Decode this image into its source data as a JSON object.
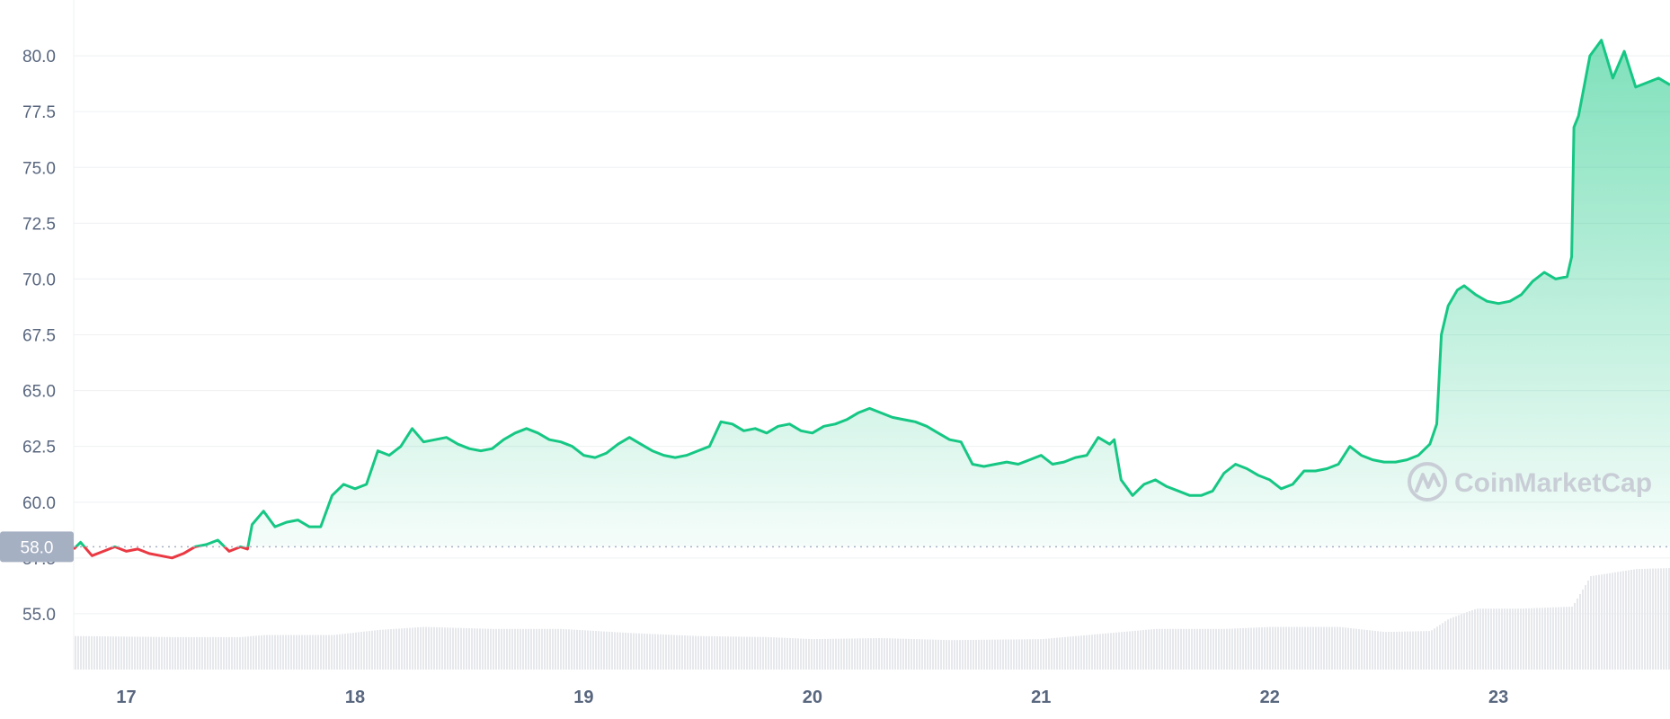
{
  "chart_data": {
    "type": "area",
    "title": "",
    "xlabel": "",
    "ylabel": "",
    "ylim": [
      52.5,
      82.5
    ],
    "y_ticks": [
      "55.0",
      "57.5",
      "60.0",
      "62.5",
      "65.0",
      "67.5",
      "70.0",
      "72.5",
      "75.0",
      "77.5",
      "80.0"
    ],
    "x_range": [
      16.77,
      23.75
    ],
    "x_ticks": [
      {
        "x": 17,
        "label": "17"
      },
      {
        "x": 18,
        "label": "18"
      },
      {
        "x": 19,
        "label": "19"
      },
      {
        "x": 20,
        "label": "20"
      },
      {
        "x": 21,
        "label": "21"
      },
      {
        "x": 22,
        "label": "22"
      },
      {
        "x": 23,
        "label": "23"
      }
    ],
    "reference_line": {
      "value": 58.0,
      "label": "58.0"
    },
    "colors": {
      "up": "#16c784",
      "down": "#ea3943",
      "volume": "#e6e8ec",
      "reference": "#a6b0c3"
    },
    "series": [
      {
        "values": [
          [
            16.77,
            57.9
          ],
          [
            16.8,
            58.2
          ],
          [
            16.85,
            57.6
          ],
          [
            16.9,
            57.8
          ],
          [
            16.95,
            58.0
          ],
          [
            17.0,
            57.8
          ],
          [
            17.05,
            57.9
          ],
          [
            17.1,
            57.7
          ],
          [
            17.15,
            57.6
          ],
          [
            17.2,
            57.5
          ],
          [
            17.25,
            57.7
          ],
          [
            17.3,
            58.0
          ],
          [
            17.35,
            58.1
          ],
          [
            17.4,
            58.3
          ],
          [
            17.45,
            57.8
          ],
          [
            17.5,
            58.0
          ],
          [
            17.53,
            57.9
          ],
          [
            17.55,
            59.0
          ],
          [
            17.6,
            59.6
          ],
          [
            17.65,
            58.9
          ],
          [
            17.7,
            59.1
          ],
          [
            17.75,
            59.2
          ],
          [
            17.8,
            58.9
          ],
          [
            17.85,
            58.9
          ],
          [
            17.9,
            60.3
          ],
          [
            17.95,
            60.8
          ],
          [
            18.0,
            60.6
          ],
          [
            18.05,
            60.8
          ],
          [
            18.1,
            62.3
          ],
          [
            18.15,
            62.1
          ],
          [
            18.2,
            62.5
          ],
          [
            18.25,
            63.3
          ],
          [
            18.3,
            62.7
          ],
          [
            18.35,
            62.8
          ],
          [
            18.4,
            62.9
          ],
          [
            18.45,
            62.6
          ],
          [
            18.5,
            62.4
          ],
          [
            18.55,
            62.3
          ],
          [
            18.6,
            62.4
          ],
          [
            18.65,
            62.8
          ],
          [
            18.7,
            63.1
          ],
          [
            18.75,
            63.3
          ],
          [
            18.8,
            63.1
          ],
          [
            18.85,
            62.8
          ],
          [
            18.9,
            62.7
          ],
          [
            18.95,
            62.5
          ],
          [
            19.0,
            62.1
          ],
          [
            19.05,
            62.0
          ],
          [
            19.1,
            62.2
          ],
          [
            19.15,
            62.6
          ],
          [
            19.2,
            62.9
          ],
          [
            19.25,
            62.6
          ],
          [
            19.3,
            62.3
          ],
          [
            19.35,
            62.1
          ],
          [
            19.4,
            62.0
          ],
          [
            19.45,
            62.1
          ],
          [
            19.5,
            62.3
          ],
          [
            19.55,
            62.5
          ],
          [
            19.6,
            63.6
          ],
          [
            19.65,
            63.5
          ],
          [
            19.7,
            63.2
          ],
          [
            19.75,
            63.3
          ],
          [
            19.8,
            63.1
          ],
          [
            19.85,
            63.4
          ],
          [
            19.9,
            63.5
          ],
          [
            19.95,
            63.2
          ],
          [
            20.0,
            63.1
          ],
          [
            20.05,
            63.4
          ],
          [
            20.1,
            63.5
          ],
          [
            20.15,
            63.7
          ],
          [
            20.2,
            64.0
          ],
          [
            20.25,
            64.2
          ],
          [
            20.3,
            64.0
          ],
          [
            20.35,
            63.8
          ],
          [
            20.4,
            63.7
          ],
          [
            20.45,
            63.6
          ],
          [
            20.5,
            63.4
          ],
          [
            20.55,
            63.1
          ],
          [
            20.6,
            62.8
          ],
          [
            20.65,
            62.7
          ],
          [
            20.7,
            61.7
          ],
          [
            20.75,
            61.6
          ],
          [
            20.8,
            61.7
          ],
          [
            20.85,
            61.8
          ],
          [
            20.9,
            61.7
          ],
          [
            20.95,
            61.9
          ],
          [
            21.0,
            62.1
          ],
          [
            21.05,
            61.7
          ],
          [
            21.1,
            61.8
          ],
          [
            21.15,
            62.0
          ],
          [
            21.2,
            62.1
          ],
          [
            21.25,
            62.9
          ],
          [
            21.3,
            62.6
          ],
          [
            21.32,
            62.8
          ],
          [
            21.35,
            61.0
          ],
          [
            21.4,
            60.3
          ],
          [
            21.45,
            60.8
          ],
          [
            21.5,
            61.0
          ],
          [
            21.55,
            60.7
          ],
          [
            21.6,
            60.5
          ],
          [
            21.65,
            60.3
          ],
          [
            21.7,
            60.3
          ],
          [
            21.75,
            60.5
          ],
          [
            21.8,
            61.3
          ],
          [
            21.85,
            61.7
          ],
          [
            21.9,
            61.5
          ],
          [
            21.95,
            61.2
          ],
          [
            22.0,
            61.0
          ],
          [
            22.05,
            60.6
          ],
          [
            22.1,
            60.8
          ],
          [
            22.15,
            61.4
          ],
          [
            22.2,
            61.4
          ],
          [
            22.25,
            61.5
          ],
          [
            22.3,
            61.7
          ],
          [
            22.35,
            62.5
          ],
          [
            22.4,
            62.1
          ],
          [
            22.45,
            61.9
          ],
          [
            22.5,
            61.8
          ],
          [
            22.55,
            61.8
          ],
          [
            22.6,
            61.9
          ],
          [
            22.65,
            62.1
          ],
          [
            22.7,
            62.6
          ],
          [
            22.73,
            63.5
          ],
          [
            22.75,
            67.5
          ],
          [
            22.78,
            68.8
          ],
          [
            22.82,
            69.5
          ],
          [
            22.85,
            69.7
          ],
          [
            22.9,
            69.3
          ],
          [
            22.95,
            69.0
          ],
          [
            23.0,
            68.9
          ],
          [
            23.05,
            69.0
          ],
          [
            23.1,
            69.3
          ],
          [
            23.15,
            69.9
          ],
          [
            23.2,
            70.3
          ],
          [
            23.25,
            70.0
          ],
          [
            23.3,
            70.1
          ],
          [
            23.32,
            71.0
          ],
          [
            23.33,
            76.8
          ],
          [
            23.35,
            77.3
          ],
          [
            23.4,
            80.0
          ],
          [
            23.45,
            80.7
          ],
          [
            23.5,
            79.0
          ],
          [
            23.55,
            80.2
          ],
          [
            23.6,
            78.6
          ],
          [
            23.65,
            78.8
          ],
          [
            23.7,
            79.0
          ],
          [
            23.75,
            78.7
          ]
        ]
      }
    ],
    "volume": [
      {
        "x": 16.77,
        "level": 0.33
      },
      {
        "x": 17.2,
        "level": 0.32
      },
      {
        "x": 17.5,
        "level": 0.32
      },
      {
        "x": 17.6,
        "level": 0.34
      },
      {
        "x": 17.9,
        "level": 0.34
      },
      {
        "x": 18.1,
        "level": 0.39
      },
      {
        "x": 18.3,
        "level": 0.42
      },
      {
        "x": 18.6,
        "level": 0.4
      },
      {
        "x": 18.9,
        "level": 0.4
      },
      {
        "x": 19.2,
        "level": 0.36
      },
      {
        "x": 19.5,
        "level": 0.33
      },
      {
        "x": 19.8,
        "level": 0.32
      },
      {
        "x": 20.0,
        "level": 0.3
      },
      {
        "x": 20.3,
        "level": 0.31
      },
      {
        "x": 20.6,
        "level": 0.29
      },
      {
        "x": 21.0,
        "level": 0.3
      },
      {
        "x": 21.3,
        "level": 0.36
      },
      {
        "x": 21.5,
        "level": 0.4
      },
      {
        "x": 21.8,
        "level": 0.4
      },
      {
        "x": 22.0,
        "level": 0.42
      },
      {
        "x": 22.3,
        "level": 0.42
      },
      {
        "x": 22.5,
        "level": 0.37
      },
      {
        "x": 22.7,
        "level": 0.38
      },
      {
        "x": 22.78,
        "level": 0.5
      },
      {
        "x": 22.9,
        "level": 0.6
      },
      {
        "x": 23.1,
        "level": 0.6
      },
      {
        "x": 23.32,
        "level": 0.62
      },
      {
        "x": 23.4,
        "level": 0.92
      },
      {
        "x": 23.6,
        "level": 0.99
      },
      {
        "x": 23.75,
        "level": 1.0
      }
    ]
  },
  "watermark": {
    "text": "CoinMarketCap"
  }
}
